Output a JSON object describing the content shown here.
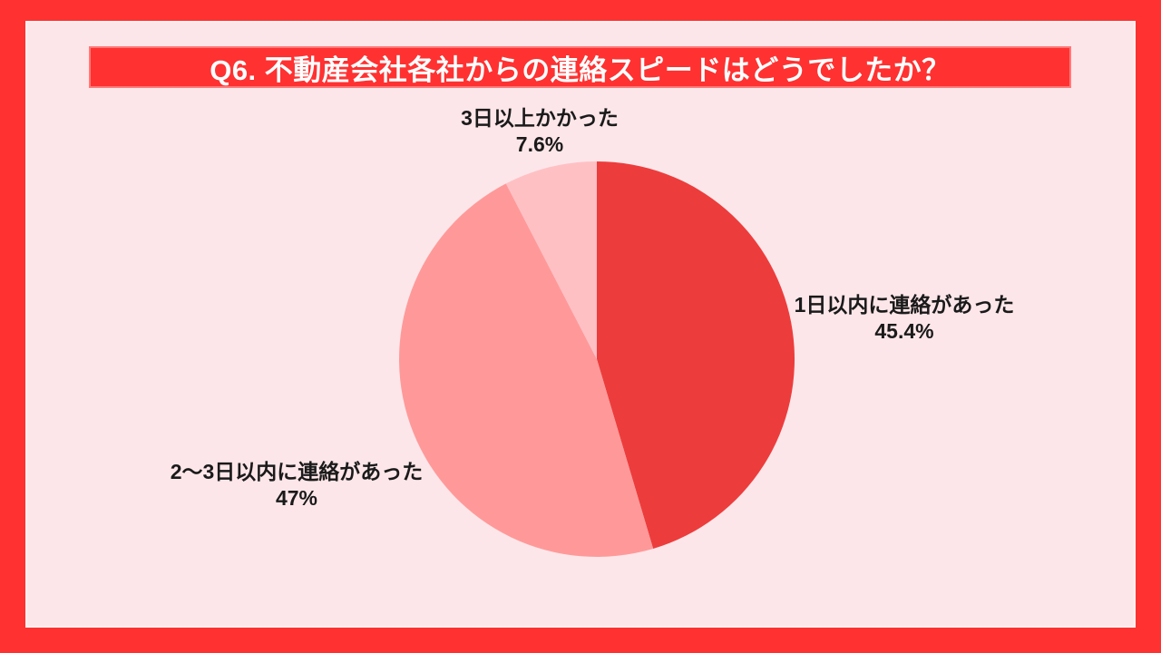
{
  "header": {
    "title": "Q6. 不動産会社各社からの連絡スピードはどうでしたか？"
  },
  "colors": {
    "frame_red": "#FF3131",
    "banner_red": "#FF3131",
    "panel_pink": "#FDE6E9",
    "title_text": "#FFFFFF",
    "label_text": "#1A1A1A"
  },
  "chart_data": {
    "type": "pie",
    "title": "Q6. 不動産会社各社からの連絡スピードはどうでしたか？",
    "direction": "clockwise",
    "start_angle_deg": 0,
    "legend_position": "none",
    "grid": false,
    "slices": [
      {
        "label": "1日以内に連絡があった",
        "value": 45.4,
        "percent_label": "45.4%",
        "color": "#ED3C3C"
      },
      {
        "label": "2〜3日以内に連絡があった",
        "value": 47,
        "percent_label": "47%",
        "color": "#FF9999"
      },
      {
        "label": "3日以上かかった",
        "value": 7.6,
        "percent_label": "7.6%",
        "color": "#FFC0C4"
      }
    ]
  }
}
